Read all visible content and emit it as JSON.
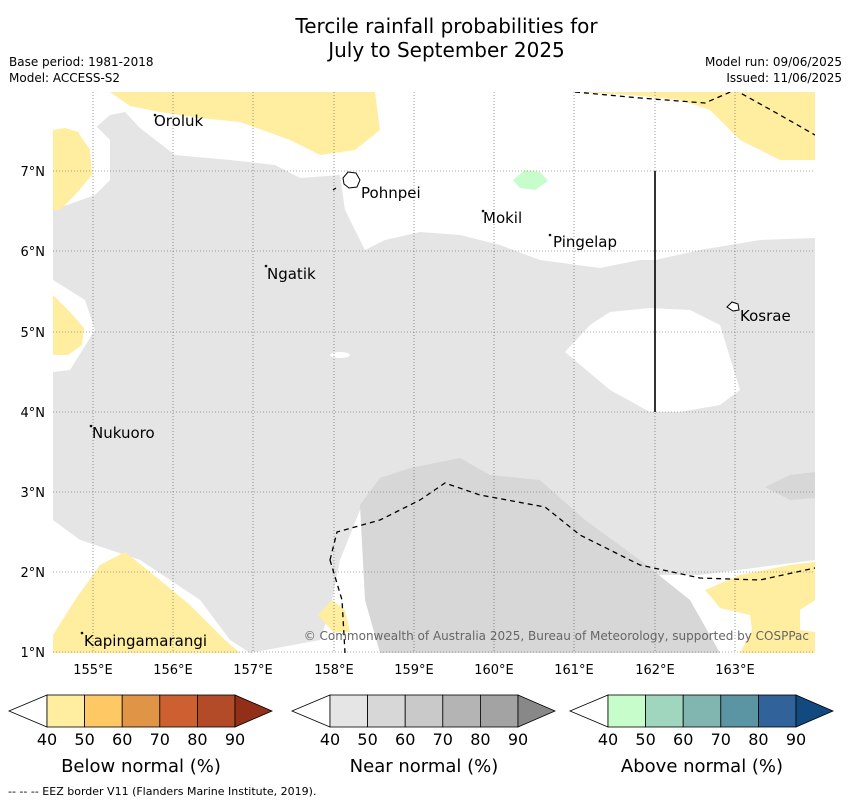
{
  "title_line1": "Tercile rainfall probabilities for",
  "title_line2": "July to September 2025",
  "meta_left": {
    "base_period": "Base period: 1981-2018",
    "model": "Model: ACCESS-S2"
  },
  "meta_right": {
    "model_run": "Model run: 09/06/2025",
    "issued": "Issued: 11/06/2025"
  },
  "places": [
    "Oroluk",
    "Pohnpei",
    "Mokil",
    "Pingelap",
    "Ngatik",
    "Kosrae",
    "Nukuoro",
    "Kapingamarangi"
  ],
  "lat_ticks": [
    "7°N",
    "6°N",
    "5°N",
    "4°N",
    "3°N",
    "2°N",
    "1°N"
  ],
  "lon_ticks": [
    "155°E",
    "156°E",
    "157°E",
    "158°E",
    "159°E",
    "160°E",
    "161°E",
    "162°E",
    "163°E"
  ],
  "copyright": "© Commonwealth of Australia 2025, Bureau of Meteorology, supported by COSPPac",
  "colorbars": [
    {
      "title": "Below normal (%)",
      "ticks": [
        "40",
        "50",
        "60",
        "70",
        "80",
        "90"
      ],
      "colors": [
        "#ffffff",
        "#ffeda0",
        "#fec965",
        "#e09446",
        "#cc6030",
        "#b34b28",
        "#922f18"
      ]
    },
    {
      "title": "Near normal (%)",
      "ticks": [
        "40",
        "50",
        "60",
        "70",
        "80",
        "90"
      ],
      "colors": [
        "#ffffff",
        "#e5e5e5",
        "#d7d7d7",
        "#c9c9c9",
        "#b4b4b4",
        "#a3a3a3",
        "#888888"
      ]
    },
    {
      "title": "Above normal (%)",
      "ticks": [
        "40",
        "50",
        "60",
        "70",
        "80",
        "90"
      ],
      "colors": [
        "#ffffff",
        "#c7fccb",
        "#a1d6be",
        "#80b5b0",
        "#5b94a3",
        "#31639a",
        "#124a80"
      ]
    }
  ],
  "footnote": "--  --  -- EEZ border V11 (Flanders Marine Institute, 2019)."
}
